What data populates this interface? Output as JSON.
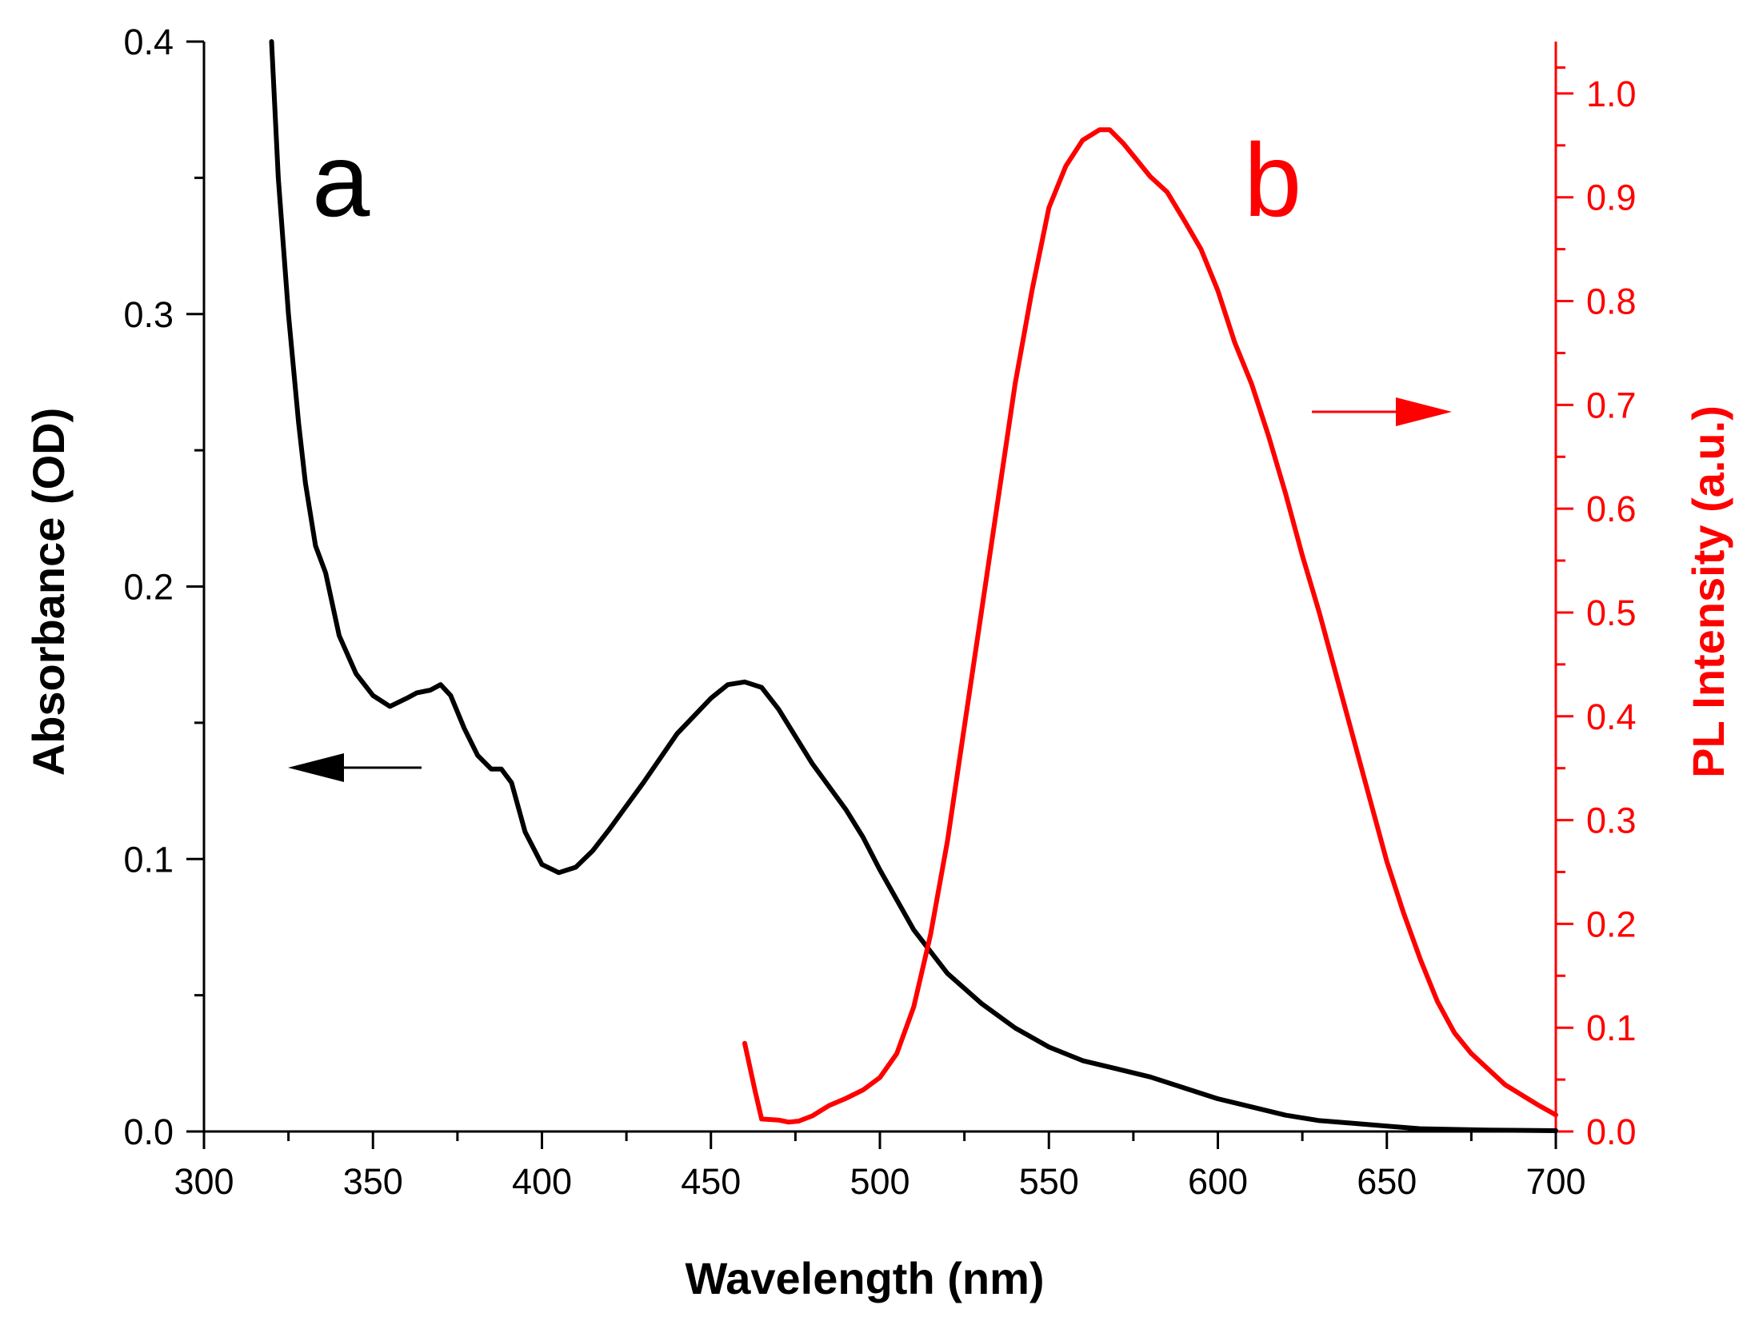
{
  "chart_data": {
    "type": "line",
    "title": "",
    "xlabel": "Wavelength (nm)",
    "ylabel_left": "Absorbance (OD)",
    "ylabel_right": "PL Intensity (a.u.)",
    "xlim": [
      300,
      700
    ],
    "ylim_left": [
      0,
      0.4
    ],
    "ylim_right": [
      0,
      1.05
    ],
    "x_ticks": [
      "300",
      "350",
      "400",
      "450",
      "500",
      "550",
      "600",
      "650",
      "700"
    ],
    "y_left_ticks": [
      "0.0",
      "0.1",
      "0.2",
      "0.3",
      "0.4"
    ],
    "y_right_ticks": [
      "0.0",
      "0.1",
      "0.2",
      "0.3",
      "0.4",
      "0.5",
      "0.6",
      "0.7",
      "0.8",
      "0.9",
      "1.0"
    ],
    "grid": false,
    "colors": {
      "left_axis": "#000000",
      "right_axis": "#ff0000",
      "series_a": "#000000",
      "series_b": "#ff0000"
    },
    "annotations": [
      {
        "text": "a",
        "color": "#000000"
      },
      {
        "text": "b",
        "color": "#ff0000"
      }
    ],
    "series": [
      {
        "label": "a",
        "axis": "left",
        "color": "#000000",
        "points": [
          [
            320,
            0.4
          ],
          [
            322,
            0.35
          ],
          [
            325,
            0.3
          ],
          [
            328,
            0.26
          ],
          [
            330,
            0.238
          ],
          [
            333,
            0.215
          ],
          [
            336,
            0.205
          ],
          [
            340,
            0.182
          ],
          [
            345,
            0.168
          ],
          [
            350,
            0.16
          ],
          [
            355,
            0.156
          ],
          [
            360,
            0.159
          ],
          [
            363,
            0.161
          ],
          [
            367,
            0.162
          ],
          [
            370,
            0.164
          ],
          [
            373,
            0.16
          ],
          [
            377,
            0.148
          ],
          [
            381,
            0.138
          ],
          [
            385,
            0.133
          ],
          [
            388,
            0.133
          ],
          [
            391,
            0.128
          ],
          [
            395,
            0.11
          ],
          [
            400,
            0.098
          ],
          [
            405,
            0.095
          ],
          [
            410,
            0.097
          ],
          [
            415,
            0.103
          ],
          [
            420,
            0.111
          ],
          [
            430,
            0.128
          ],
          [
            440,
            0.146
          ],
          [
            450,
            0.159
          ],
          [
            455,
            0.164
          ],
          [
            460,
            0.165
          ],
          [
            465,
            0.163
          ],
          [
            470,
            0.155
          ],
          [
            475,
            0.145
          ],
          [
            480,
            0.135
          ],
          [
            490,
            0.118
          ],
          [
            495,
            0.108
          ],
          [
            500,
            0.096
          ],
          [
            510,
            0.074
          ],
          [
            520,
            0.058
          ],
          [
            530,
            0.047
          ],
          [
            540,
            0.038
          ],
          [
            550,
            0.031
          ],
          [
            560,
            0.026
          ],
          [
            570,
            0.023
          ],
          [
            580,
            0.02
          ],
          [
            590,
            0.016
          ],
          [
            600,
            0.012
          ],
          [
            610,
            0.009
          ],
          [
            620,
            0.006
          ],
          [
            630,
            0.004
          ],
          [
            640,
            0.003
          ],
          [
            650,
            0.002
          ],
          [
            660,
            0.001
          ],
          [
            680,
            0.0005
          ],
          [
            700,
            0.0003
          ]
        ]
      },
      {
        "label": "b",
        "axis": "right",
        "color": "#ff0000",
        "points": [
          [
            460,
            0.085
          ],
          [
            463,
            0.04
          ],
          [
            465,
            0.012
          ],
          [
            470,
            0.011
          ],
          [
            473,
            0.009
          ],
          [
            476,
            0.01
          ],
          [
            480,
            0.015
          ],
          [
            485,
            0.025
          ],
          [
            490,
            0.032
          ],
          [
            495,
            0.04
          ],
          [
            500,
            0.052
          ],
          [
            505,
            0.075
          ],
          [
            510,
            0.12
          ],
          [
            515,
            0.19
          ],
          [
            520,
            0.28
          ],
          [
            525,
            0.39
          ],
          [
            530,
            0.5
          ],
          [
            535,
            0.61
          ],
          [
            540,
            0.72
          ],
          [
            545,
            0.81
          ],
          [
            550,
            0.89
          ],
          [
            555,
            0.93
          ],
          [
            560,
            0.955
          ],
          [
            565,
            0.965
          ],
          [
            568,
            0.965
          ],
          [
            572,
            0.952
          ],
          [
            575,
            0.94
          ],
          [
            580,
            0.92
          ],
          [
            585,
            0.905
          ],
          [
            590,
            0.878
          ],
          [
            595,
            0.85
          ],
          [
            600,
            0.81
          ],
          [
            605,
            0.76
          ],
          [
            610,
            0.72
          ],
          [
            615,
            0.67
          ],
          [
            620,
            0.615
          ],
          [
            625,
            0.555
          ],
          [
            630,
            0.5
          ],
          [
            635,
            0.44
          ],
          [
            640,
            0.38
          ],
          [
            645,
            0.32
          ],
          [
            650,
            0.26
          ],
          [
            655,
            0.21
          ],
          [
            660,
            0.165
          ],
          [
            665,
            0.125
          ],
          [
            670,
            0.095
          ],
          [
            675,
            0.075
          ],
          [
            680,
            0.06
          ],
          [
            685,
            0.045
          ],
          [
            690,
            0.035
          ],
          [
            695,
            0.025
          ],
          [
            700,
            0.016
          ]
        ]
      }
    ]
  }
}
